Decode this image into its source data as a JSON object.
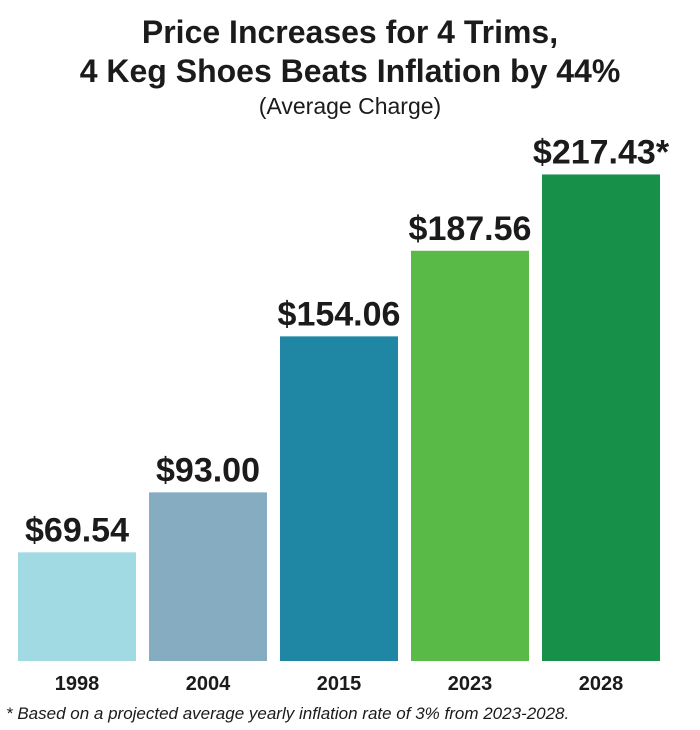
{
  "chart_data": {
    "type": "bar",
    "title": [
      "Price Increases for 4 Trims,",
      "4 Keg Shoes Beats Inflation by 44%"
    ],
    "subtitle": "(Average Charge)",
    "categories": [
      "1998",
      "2004",
      "2015",
      "2023",
      "2028"
    ],
    "values": [
      69.54,
      93.0,
      154.06,
      187.56,
      217.43
    ],
    "value_labels": [
      "$69.54",
      "$93.00",
      "$154.06",
      "$187.56",
      "$217.43*"
    ],
    "colors": [
      "#a2dae3",
      "#86acc2",
      "#1f87a3",
      "#5aba48",
      "#17904a"
    ],
    "ylim": [
      27,
      218
    ],
    "xlabel": "",
    "ylabel": "",
    "grid": false,
    "footnote": "* Based on a projected average yearly inflation rate of 3% from 2023-2028."
  }
}
